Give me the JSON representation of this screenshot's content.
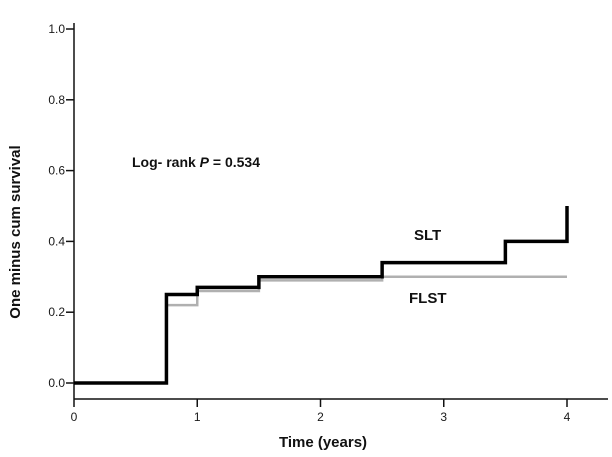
{
  "chart_data": {
    "type": "line",
    "step": true,
    "xlabel": "Time (years)",
    "ylabel": "One minus cum survival",
    "xlim": [
      0,
      4
    ],
    "ylim": [
      0,
      1.0
    ],
    "xticks": [
      "0",
      "1",
      "2",
      "3",
      "4"
    ],
    "yticks": [
      "0.0",
      "0.2",
      "0.4",
      "0.6",
      "0.8",
      "1.0"
    ],
    "grid": false,
    "annotation": {
      "prefix": "Log- rank ",
      "italic": "P",
      "suffix": " = 0.534"
    },
    "series": [
      {
        "name": "FLST",
        "color": "#b0b0b0",
        "x": [
          0,
          0.75,
          0.75,
          1.0,
          1.0,
          1.5,
          1.5,
          2.5,
          2.5,
          4.0
        ],
        "y": [
          0.0,
          0.0,
          0.22,
          0.22,
          0.26,
          0.26,
          0.29,
          0.29,
          0.3,
          0.3
        ]
      },
      {
        "name": "SLT",
        "color": "#000000",
        "x": [
          0,
          0.75,
          0.75,
          1.0,
          1.0,
          1.5,
          1.5,
          2.5,
          2.5,
          3.5,
          3.5,
          4.0,
          4.0
        ],
        "y": [
          0.0,
          0.0,
          0.25,
          0.25,
          0.27,
          0.27,
          0.3,
          0.3,
          0.34,
          0.34,
          0.4,
          0.4,
          0.5
        ]
      }
    ]
  }
}
